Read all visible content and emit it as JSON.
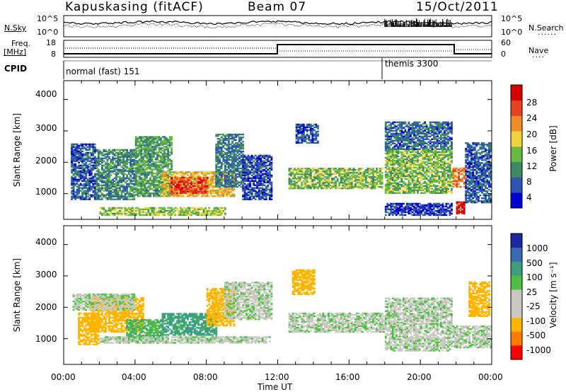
{
  "header": {
    "station": "Kapuskasing (fitACF)",
    "beam": "Beam 07",
    "date": "15/Oct/2011"
  },
  "top_panels": {
    "nsky_label": "N.Sky",
    "nsky_ticks": [
      "10^5",
      "10^0"
    ],
    "nsearch_label": "N.Search",
    "nsearch_ticks": [
      "10^5",
      "10^0"
    ],
    "freq_label": "Freq.",
    "freq_unit": "[MHz]",
    "freq_ticks": [
      "18",
      "8"
    ],
    "nave_label": "Nave",
    "nave_ticks": [
      "60",
      "0"
    ],
    "cpid_label": "CPID",
    "cpid_modes": [
      {
        "name": "normal (fast) 151",
        "start_hour": 0,
        "end_hour": 18
      },
      {
        "name": "themis 3300",
        "start_hour": 18,
        "end_hour": 24
      }
    ]
  },
  "colors": {
    "power_scale": [
      "#0000d0",
      "#2e55b3",
      "#3c8a64",
      "#68b842",
      "#f0d23c",
      "#f08c28",
      "#e84020",
      "#d80000"
    ],
    "velocity_scale": [
      "#ff0000",
      "#ff7a00",
      "#ffb400",
      "#c8c8c0",
      "#c8c8c0",
      "#4cc040",
      "#3ca080",
      "#3a6ab0",
      "#1c28a0"
    ],
    "ground_scatter": "#c8c8c0"
  },
  "chart_data": [
    {
      "type": "heatmap",
      "name": "power",
      "xlabel": "",
      "ylabel": "Slant Range [km]",
      "x_ticks": [
        "00:00",
        "04:00",
        "08:00",
        "12:00",
        "16:00",
        "20:00",
        "00:00"
      ],
      "y_ticks": [
        "1000",
        "2000",
        "3000",
        "4000"
      ],
      "xlim_hours": [
        0,
        24
      ],
      "ylim_km": [
        180,
        4600
      ],
      "colorbar_label": "Power [dB]",
      "colorbar_ticks": [
        "4",
        "8",
        "12",
        "16",
        "20",
        "24",
        "28"
      ],
      "colorbar_range": [
        0,
        30
      ],
      "regions": [
        {
          "t0": 0.4,
          "t1": 1.8,
          "r0": 800,
          "r1": 2600,
          "level": 6
        },
        {
          "t0": 1.8,
          "t1": 4.0,
          "r0": 800,
          "r1": 2400,
          "level": 9
        },
        {
          "t0": 4.0,
          "t1": 6.0,
          "r0": 900,
          "r1": 2800,
          "level": 11
        },
        {
          "t0": 5.5,
          "t1": 9.5,
          "r0": 900,
          "r1": 1700,
          "level": 18
        },
        {
          "t0": 6.0,
          "t1": 8.0,
          "r0": 1000,
          "r1": 1500,
          "level": 25
        },
        {
          "t0": 8.5,
          "t1": 10.0,
          "r0": 1200,
          "r1": 2900,
          "level": 8
        },
        {
          "t0": 2.0,
          "t1": 9.0,
          "r0": 300,
          "r1": 550,
          "level": 14
        },
        {
          "t0": 10.0,
          "t1": 11.6,
          "r0": 800,
          "r1": 2200,
          "level": 5
        },
        {
          "t0": 12.6,
          "t1": 17.9,
          "r0": 1150,
          "r1": 1800,
          "level": 13
        },
        {
          "t0": 13.0,
          "t1": 14.2,
          "r0": 2600,
          "r1": 3200,
          "level": 6
        },
        {
          "t0": 18.0,
          "t1": 21.8,
          "r0": 1000,
          "r1": 2400,
          "level": 13
        },
        {
          "t0": 18.0,
          "t1": 21.8,
          "r0": 300,
          "r1": 700,
          "level": 4
        },
        {
          "t0": 18.0,
          "t1": 21.8,
          "r0": 2400,
          "r1": 3300,
          "level": 7
        },
        {
          "t0": 21.8,
          "t1": 22.6,
          "r0": 1200,
          "r1": 1800,
          "level": 22
        },
        {
          "t0": 22.0,
          "t1": 22.5,
          "r0": 350,
          "r1": 750,
          "level": 28
        },
        {
          "t0": 22.5,
          "t1": 24.0,
          "r0": 700,
          "r1": 2600,
          "level": 6
        }
      ]
    },
    {
      "type": "heatmap",
      "name": "velocity",
      "xlabel": "Time UT",
      "ylabel": "Slant Range [km]",
      "x_ticks": [
        "00:00",
        "04:00",
        "08:00",
        "12:00",
        "16:00",
        "20:00",
        "00:00"
      ],
      "y_ticks": [
        "1000",
        "2000",
        "3000",
        "4000"
      ],
      "xlim_hours": [
        0,
        24
      ],
      "ylim_km": [
        180,
        4600
      ],
      "colorbar_label": "Velocity [m s⁻¹]",
      "colorbar_ticks": [
        "1000",
        "500",
        "100",
        "25",
        "-25",
        "-100",
        "-500",
        "-1000"
      ],
      "regions": [
        {
          "t0": 0.8,
          "t1": 2.0,
          "r0": 800,
          "r1": 1800,
          "level": -300
        },
        {
          "t0": 1.5,
          "t1": 4.5,
          "r0": 1200,
          "r1": 2300,
          "level": -200
        },
        {
          "t0": 0.5,
          "t1": 4.0,
          "r0": 1900,
          "r1": 2400,
          "level": 0
        },
        {
          "t0": 3.5,
          "t1": 5.5,
          "r0": 900,
          "r1": 1600,
          "level": 80
        },
        {
          "t0": 5.5,
          "t1": 8.5,
          "r0": 1100,
          "r1": 1800,
          "level": 150
        },
        {
          "t0": 8.0,
          "t1": 9.5,
          "r0": 1400,
          "r1": 2600,
          "level": -350
        },
        {
          "t0": 2.0,
          "t1": 11.5,
          "r0": 850,
          "r1": 1050,
          "level": 0
        },
        {
          "t0": 9.0,
          "t1": 11.6,
          "r0": 1600,
          "r1": 2800,
          "level": 0
        },
        {
          "t0": 12.6,
          "t1": 18.0,
          "r0": 1200,
          "r1": 1800,
          "level": 0
        },
        {
          "t0": 12.8,
          "t1": 14.0,
          "r0": 2400,
          "r1": 3200,
          "level": -250
        },
        {
          "t0": 18.0,
          "t1": 21.8,
          "r0": 600,
          "r1": 2300,
          "level": 0
        },
        {
          "t0": 21.8,
          "t1": 24.0,
          "r0": 700,
          "r1": 1400,
          "level": 0
        },
        {
          "t0": 22.7,
          "t1": 23.9,
          "r0": 1700,
          "r1": 2800,
          "level": -400
        }
      ]
    }
  ]
}
